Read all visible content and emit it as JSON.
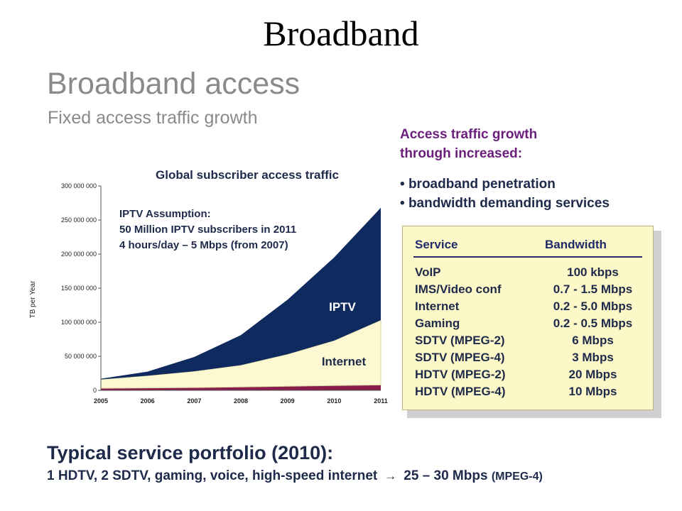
{
  "slide": {
    "title": "Broadband",
    "heading": "Broadband access",
    "subheading": "Fixed access traffic growth"
  },
  "right_panel": {
    "intro_line1": "Access traffic growth",
    "intro_line2": "through increased:",
    "bullets": [
      "broadband penetration",
      "bandwidth demanding services"
    ]
  },
  "service_table": {
    "headers": [
      "Service",
      "Bandwidth"
    ],
    "rows": [
      [
        "VoIP",
        "100 kbps"
      ],
      [
        "IMS/Video conf",
        "0.7 - 1.5 Mbps"
      ],
      [
        "Internet",
        "0.2 - 5.0 Mbps"
      ],
      [
        "Gaming",
        "0.2 - 0.5 Mbps"
      ],
      [
        "SDTV (MPEG-2)",
        "6 Mbps"
      ],
      [
        "SDTV (MPEG-4)",
        "3 Mbps"
      ],
      [
        "HDTV (MPEG-2)",
        "20 Mbps"
      ],
      [
        "HDTV (MPEG-4)",
        "10 Mbps"
      ]
    ]
  },
  "portfolio": {
    "title": "Typical service portfolio (2010):",
    "line": "1 HDTV, 2 SDTV, gaming, voice, high-speed internet",
    "arrow": "→",
    "result": "25 – 30 Mbps",
    "codec": "(MPEG-4)"
  },
  "colors": {
    "iptv": "#0f2a5e",
    "internet": "#fbf8d2",
    "other": "#8a1c4c",
    "title_text": "#1e2a4a",
    "purple_text": "#6b1f7b"
  },
  "chart_data": {
    "type": "area",
    "stacked": true,
    "title": "Global subscriber access traffic",
    "ylabel": "TB per Year",
    "xlabel": "",
    "x": [
      "2005",
      "2006",
      "2007",
      "2008",
      "2009",
      "2010",
      "2011"
    ],
    "ylim": [
      0,
      300000000
    ],
    "yticks": [
      0,
      50000000,
      100000000,
      150000000,
      200000000,
      250000000,
      300000000
    ],
    "ytick_labels": [
      "0",
      "50 000 000",
      "100 000 000",
      "150 000 000",
      "200 000 000",
      "250 000 000",
      "300 000 000"
    ],
    "series": [
      {
        "name": "",
        "values": [
          3000000,
          3500000,
          4000000,
          5000000,
          6000000,
          7000000,
          8000000
        ]
      },
      {
        "name": "Internet",
        "values": [
          13000000,
          18000000,
          24000000,
          32000000,
          47000000,
          66000000,
          95000000
        ]
      },
      {
        "name": "IPTV",
        "values": [
          1000000,
          6000000,
          21000000,
          44000000,
          80000000,
          122000000,
          165000000
        ]
      }
    ],
    "annotations": [
      {
        "id": "assumption",
        "lines": [
          "IPTV Assumption:",
          "50 Million IPTV subscribers in 2011",
          "4 hours/day – 5 Mbps (from 2007)"
        ]
      }
    ],
    "grid": false,
    "legend": "none"
  }
}
